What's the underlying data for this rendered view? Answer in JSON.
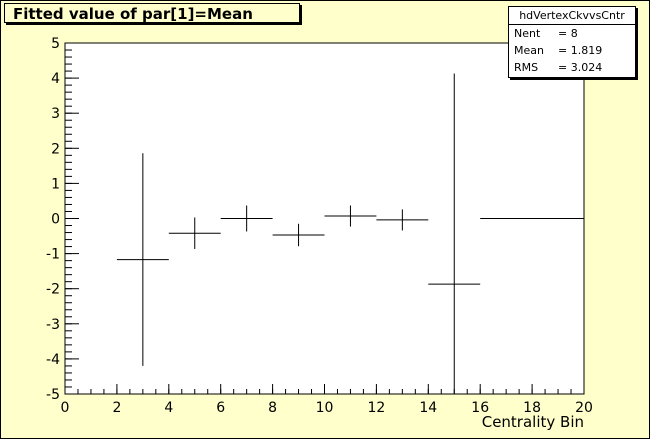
{
  "title": "Fitted value of par[1]=Mean",
  "stats": {
    "name": "hdVertexCkvvsCntr",
    "rows": [
      {
        "label": "Nent",
        "value": "= 8"
      },
      {
        "label": "Mean",
        "value": "=  1.819"
      },
      {
        "label": "RMS",
        "value": "=  3.024"
      }
    ]
  },
  "colors": {
    "background": "#ffffcc",
    "plot_background": "#ffffff",
    "line": "#000000"
  },
  "chart_data": {
    "type": "scatter",
    "title": "Fitted value of par[1]=Mean",
    "xlabel": "Centrality Bin",
    "ylabel": "",
    "xlim": [
      0,
      20
    ],
    "ylim": [
      -5,
      5
    ],
    "x_ticks": [
      "0",
      "2",
      "4",
      "6",
      "8",
      "10",
      "12",
      "14",
      "16",
      "18",
      "20"
    ],
    "y_ticks": [
      "-5",
      "-4",
      "-3",
      "-2",
      "-1",
      "0",
      "1",
      "2",
      "3",
      "4",
      "5"
    ],
    "grid": false,
    "points": [
      {
        "x": 3,
        "xerr": 1,
        "y": -1.17,
        "yerr": 3.03
      },
      {
        "x": 5,
        "xerr": 1,
        "y": -0.42,
        "yerr": 0.45
      },
      {
        "x": 7,
        "xerr": 1,
        "y": 0.0,
        "yerr": 0.37
      },
      {
        "x": 9,
        "xerr": 1,
        "y": -0.47,
        "yerr": 0.32
      },
      {
        "x": 11,
        "xerr": 1,
        "y": 0.07,
        "yerr": 0.3
      },
      {
        "x": 13,
        "xerr": 1,
        "y": -0.04,
        "yerr": 0.3
      },
      {
        "x": 15,
        "xerr": 1,
        "y": -1.87,
        "yerr": 6.0
      },
      {
        "x": 18,
        "xerr": 2,
        "y": 0.0,
        "yerr": 0
      }
    ]
  }
}
